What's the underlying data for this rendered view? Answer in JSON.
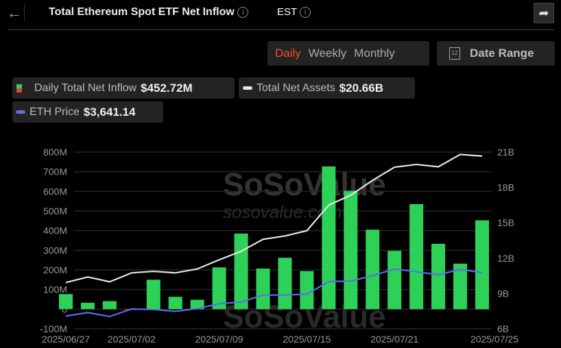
{
  "header": {
    "title": "Total Ethereum Spot ETF Net Inflow",
    "timezone": "EST",
    "back_icon": "arrow-left-icon",
    "share_icon": "share-icon"
  },
  "period_tabs": [
    {
      "label": "Daily",
      "active": true
    },
    {
      "label": "Weekly",
      "active": false
    },
    {
      "label": "Monthly",
      "active": false
    }
  ],
  "date_range": {
    "label": "Date Range",
    "icon": "calendar-icon",
    "icon_text": "12"
  },
  "legend": {
    "inflow": {
      "label": "Daily Total Net Inflow",
      "value": "$452.72M"
    },
    "assets": {
      "label": "Total Net Assets",
      "value": "$20.66B"
    },
    "price": {
      "label": "ETH Price",
      "value": "$3,641.14"
    }
  },
  "watermark": "SoSoValue sosovalue.com",
  "colors": {
    "positive": "#2ed158",
    "negative": "#e8412f",
    "assets_line": "#e6e6e6",
    "price_line": "#5b6ee8",
    "accent": "#f0502a"
  },
  "chart_data": {
    "type": "bar",
    "left_axis": {
      "ticks": [
        "800M",
        "700M",
        "600M",
        "500M",
        "400M",
        "300M",
        "200M",
        "100M",
        "0",
        "-100M"
      ],
      "ylim": [
        -100,
        800
      ],
      "unit": "M USD"
    },
    "right_axis": {
      "ticks": [
        "21B",
        "18B",
        "15B",
        "12B",
        "9B",
        "6B"
      ],
      "ylim": [
        6,
        21
      ],
      "unit": "B USD"
    },
    "x_tick_labels": [
      "2025/06/27",
      "2025/07/02",
      "2025/07/09",
      "2025/07/15",
      "2025/07/21",
      "2025/07/25"
    ],
    "x": [
      "2025/06/27",
      "2025/06/30",
      "2025/07/01",
      "2025/07/02",
      "2025/07/03",
      "2025/07/07",
      "2025/07/08",
      "2025/07/09",
      "2025/07/10",
      "2025/07/11",
      "2025/07/14",
      "2025/07/15",
      "2025/07/16",
      "2025/07/17",
      "2025/07/18",
      "2025/07/21",
      "2025/07/22",
      "2025/07/23",
      "2025/07/24",
      "2025/07/25"
    ],
    "series": [
      {
        "name": "Daily Total Net Inflow",
        "type": "bar",
        "axis": "left",
        "values": [
          77,
          33,
          41,
          -2,
          150,
          63,
          48,
          213,
          385,
          207,
          262,
          194,
          727,
          603,
          405,
          297,
          535,
          333,
          232,
          452.72
        ]
      },
      {
        "name": "Total Net Assets",
        "type": "line",
        "axis": "right",
        "values": [
          9.93,
          10.4,
          9.99,
          10.75,
          10.88,
          10.75,
          11.08,
          11.86,
          12.58,
          13.6,
          13.88,
          14.33,
          16.5,
          17.34,
          18.6,
          19.72,
          19.95,
          19.75,
          20.8,
          20.66
        ]
      },
      {
        "name": "ETH Price",
        "type": "line",
        "axis": "hidden",
        "values": [
          2420,
          2518,
          2407,
          2617,
          2604,
          2552,
          2630,
          2768,
          2814,
          3011,
          3011,
          3037,
          3391,
          3404,
          3555,
          3746,
          3667,
          3582,
          3733,
          3641.14
        ]
      }
    ],
    "grid": true
  }
}
